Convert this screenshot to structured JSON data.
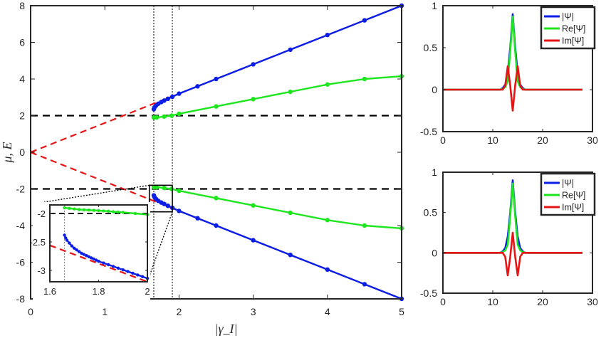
{
  "colors": {
    "blue": "#0a1ee6",
    "green": "#1ee61e",
    "red": "#e61414",
    "black": "#000000",
    "axis": "#262626"
  },
  "chart_data": [
    {
      "name": "main",
      "type": "line",
      "xlabel": "|γ_I|",
      "ylabel": "μ, E",
      "xlim": [
        0,
        5
      ],
      "ylim": [
        -8,
        8
      ],
      "xticks": [
        0,
        1,
        2,
        3,
        4,
        5
      ],
      "yticks": [
        -8,
        -6,
        -4,
        -2,
        0,
        2,
        4,
        6,
        8
      ],
      "grid": false,
      "reference_lines": {
        "horizontal_dashed_y": [
          2,
          -2
        ],
        "vertical_dotted_x": [
          1.66,
          1.91
        ]
      },
      "series": [
        {
          "color": "red",
          "style": "dashed",
          "x": [
            0,
            5
          ],
          "y": [
            0,
            8
          ]
        },
        {
          "color": "red",
          "style": "dashed",
          "x": [
            0,
            5
          ],
          "y": [
            0,
            -8
          ]
        },
        {
          "color": "blue",
          "style": "dots",
          "x": [
            1.66,
            1.67,
            1.69,
            1.72,
            1.76,
            1.8,
            1.85,
            1.91,
            2.0,
            2.25,
            2.5,
            3.0,
            3.5,
            4.0,
            4.5,
            5.0
          ],
          "y": [
            2.35,
            2.45,
            2.55,
            2.65,
            2.74,
            2.82,
            2.92,
            3.03,
            3.2,
            3.6,
            4.0,
            4.8,
            5.6,
            6.4,
            7.2,
            8.0
          ]
        },
        {
          "color": "blue",
          "style": "dots",
          "x": [
            1.66,
            1.67,
            1.69,
            1.72,
            1.76,
            1.8,
            1.85,
            1.91,
            2.0,
            2.25,
            2.5,
            3.0,
            3.5,
            4.0,
            4.5,
            5.0
          ],
          "y": [
            -2.35,
            -2.45,
            -2.55,
            -2.65,
            -2.74,
            -2.82,
            -2.92,
            -3.03,
            -3.2,
            -3.6,
            -4.0,
            -4.8,
            -5.6,
            -6.4,
            -7.2,
            -8.0
          ]
        },
        {
          "color": "green",
          "style": "dots",
          "x": [
            1.66,
            1.7,
            1.8,
            1.9,
            2.0,
            2.5,
            3.0,
            3.5,
            4.0,
            4.5,
            5.0
          ],
          "y": [
            1.9,
            1.9,
            1.95,
            2.0,
            2.1,
            2.5,
            2.9,
            3.3,
            3.7,
            4.0,
            4.15
          ]
        },
        {
          "color": "green",
          "style": "dots",
          "x": [
            1.66,
            1.7,
            1.8,
            1.9,
            2.0,
            2.5,
            3.0,
            3.5,
            4.0,
            4.5,
            5.0
          ],
          "y": [
            -1.9,
            -1.9,
            -1.95,
            -2.0,
            -2.1,
            -2.5,
            -2.9,
            -3.3,
            -3.7,
            -4.0,
            -4.15
          ]
        }
      ]
    },
    {
      "name": "inset",
      "type": "line",
      "xlim": [
        1.6,
        2
      ],
      "ylim": [
        -3.2,
        -1.85
      ],
      "xticks": [
        1.6,
        1.8,
        2
      ],
      "yticks": [
        -3,
        -2.5,
        -2
      ],
      "reference_lines": {
        "horizontal_dashed_y": [
          -2
        ],
        "vertical_dotted_x": [
          1.66
        ]
      },
      "series": [
        {
          "color": "red",
          "style": "dashed",
          "x": [
            1.6,
            2.0
          ],
          "y": [
            -2.56,
            -3.2
          ]
        },
        {
          "color": "blue",
          "style": "dots",
          "x": [
            1.66,
            1.665,
            1.67,
            1.68,
            1.69,
            1.7,
            1.71,
            1.72,
            1.73,
            1.74,
            1.75,
            1.76,
            1.77,
            1.78,
            1.79,
            1.8,
            1.82,
            1.84,
            1.86,
            1.88,
            1.9,
            1.92,
            1.94,
            1.96,
            1.98,
            2.0
          ],
          "y": [
            -2.38,
            -2.43,
            -2.47,
            -2.52,
            -2.57,
            -2.61,
            -2.64,
            -2.67,
            -2.7,
            -2.72,
            -2.74,
            -2.76,
            -2.78,
            -2.8,
            -2.82,
            -2.84,
            -2.87,
            -2.9,
            -2.93,
            -2.96,
            -2.99,
            -3.02,
            -3.05,
            -3.08,
            -3.11,
            -3.14
          ]
        },
        {
          "color": "green",
          "style": "dots",
          "x": [
            1.66,
            1.68,
            1.7,
            1.72,
            1.74,
            1.76,
            1.78,
            1.8,
            1.82,
            1.84,
            1.86,
            1.88,
            1.9,
            1.95,
            2.0
          ],
          "y": [
            -1.9,
            -1.91,
            -1.92,
            -1.93,
            -1.935,
            -1.94,
            -1.945,
            -1.95,
            -1.955,
            -1.96,
            -1.97,
            -1.975,
            -1.98,
            -2.0,
            -2.02
          ]
        }
      ]
    },
    {
      "name": "profile-top",
      "type": "line",
      "xlim": [
        0,
        30
      ],
      "ylim": [
        -0.5,
        1
      ],
      "xticks": [
        0,
        10,
        20,
        30
      ],
      "yticks": [
        -0.5,
        0,
        0.5,
        1
      ],
      "legend": {
        "placement": "top-right",
        "entries": [
          "|Ψ|",
          "Re[Ψ]",
          "Im[Ψ]"
        ]
      },
      "series": [
        {
          "name": "|Ψ|",
          "color": "blue",
          "x": [
            0,
            11.5,
            12,
            12.5,
            13,
            13.5,
            14,
            14.5,
            15,
            15.5,
            16,
            16.5,
            28
          ],
          "y": [
            0,
            0,
            0.02,
            0.06,
            0.2,
            0.5,
            0.9,
            0.5,
            0.2,
            0.06,
            0.02,
            0,
            0
          ]
        },
        {
          "name": "Re[Ψ]",
          "color": "green",
          "x": [
            0,
            11.5,
            12,
            12.5,
            13,
            13.5,
            14,
            14.5,
            15,
            15.5,
            16,
            16.5,
            28
          ],
          "y": [
            0,
            0,
            0.01,
            0.03,
            0.1,
            0.45,
            0.87,
            0.45,
            0.1,
            0.03,
            0.01,
            0,
            0
          ]
        },
        {
          "name": "Im[Ψ]",
          "color": "red",
          "x": [
            0,
            12,
            12.5,
            13,
            13.5,
            14,
            14.5,
            15,
            15.5,
            16,
            28
          ],
          "y": [
            0,
            0,
            0.05,
            0.28,
            0.05,
            -0.25,
            0.05,
            0.28,
            0.05,
            0,
            0
          ]
        }
      ]
    },
    {
      "name": "profile-bottom",
      "type": "line",
      "xlim": [
        0,
        30
      ],
      "ylim": [
        -0.5,
        1
      ],
      "xticks": [
        0,
        10,
        20,
        30
      ],
      "yticks": [
        -0.5,
        0,
        0.5,
        1
      ],
      "legend": {
        "placement": "top-right",
        "entries": [
          "|Ψ|",
          "Re[Ψ]",
          "Im[Ψ]"
        ]
      },
      "series": [
        {
          "name": "|Ψ|",
          "color": "blue",
          "x": [
            0,
            11.5,
            12,
            12.5,
            13,
            13.5,
            14,
            14.5,
            15,
            15.5,
            16,
            16.5,
            28
          ],
          "y": [
            0,
            0,
            0.02,
            0.06,
            0.2,
            0.5,
            0.9,
            0.5,
            0.2,
            0.06,
            0.02,
            0,
            0
          ]
        },
        {
          "name": "Re[Ψ]",
          "color": "green",
          "x": [
            0,
            11.5,
            12,
            12.5,
            13,
            13.5,
            14,
            14.5,
            15,
            15.5,
            16,
            16.5,
            28
          ],
          "y": [
            0,
            0,
            0.01,
            0.03,
            0.1,
            0.45,
            0.86,
            0.45,
            0.1,
            0.03,
            0.01,
            0,
            0
          ]
        },
        {
          "name": "Im[Ψ]",
          "color": "red",
          "x": [
            0,
            12,
            12.5,
            13,
            13.5,
            14,
            14.5,
            15,
            15.5,
            16,
            28
          ],
          "y": [
            0,
            0,
            -0.05,
            -0.28,
            -0.05,
            0.25,
            -0.05,
            -0.28,
            -0.05,
            0,
            0
          ]
        }
      ]
    }
  ]
}
